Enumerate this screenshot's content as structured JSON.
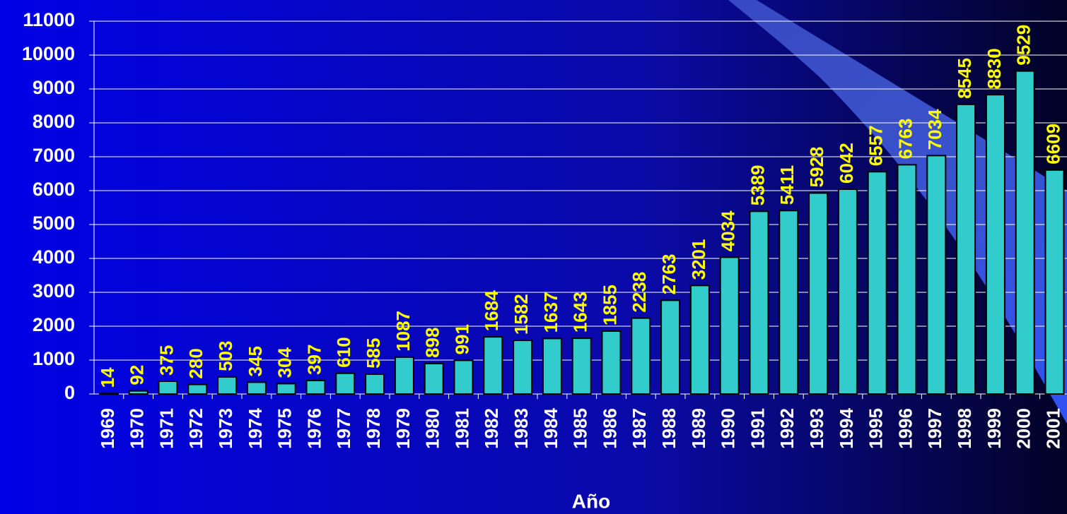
{
  "chart_data": {
    "type": "bar",
    "x_label": "Año",
    "categories": [
      "1969",
      "1970",
      "1971",
      "1972",
      "1973",
      "1974",
      "1975",
      "1976",
      "1977",
      "1978",
      "1979",
      "1980",
      "1981",
      "1982",
      "1983",
      "1984",
      "1985",
      "1986",
      "1987",
      "1988",
      "1989",
      "1990",
      "1991",
      "1992",
      "1993",
      "1994",
      "1995",
      "1996",
      "1997",
      "1998",
      "1999",
      "2000",
      "2001"
    ],
    "values": [
      14,
      92,
      375,
      280,
      503,
      345,
      304,
      397,
      610,
      585,
      1087,
      898,
      991,
      1684,
      1582,
      1637,
      1643,
      1855,
      2238,
      2763,
      3201,
      4034,
      5389,
      5411,
      5928,
      6042,
      6557,
      6763,
      7034,
      8545,
      8830,
      9529,
      6609
    ],
    "color": "#33cccc",
    "label_color": "#ffff00",
    "ylim": [
      0,
      11000
    ],
    "yticks": [
      0,
      1000,
      2000,
      3000,
      4000,
      5000,
      6000,
      7000,
      8000,
      9000,
      10000,
      11000
    ],
    "grid": true
  }
}
